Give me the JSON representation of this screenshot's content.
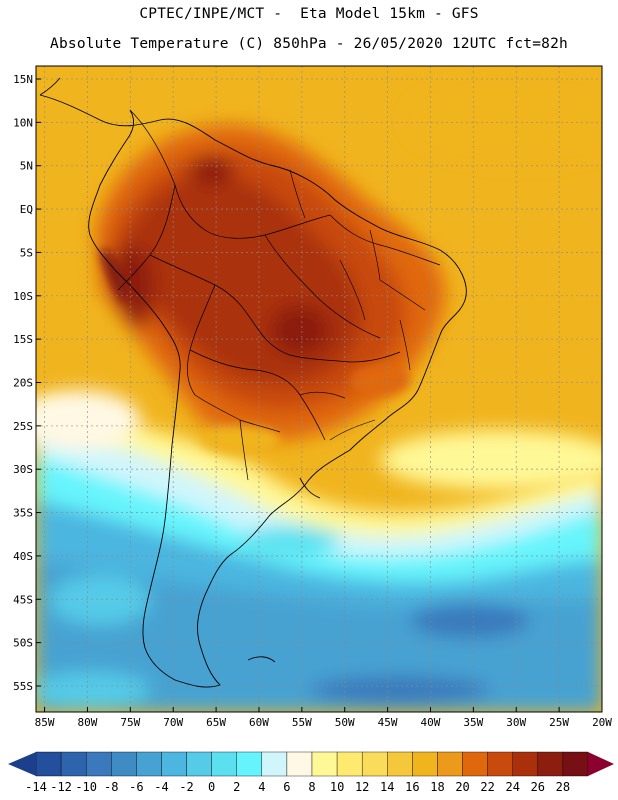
{
  "header": {
    "line1": "CPTEC/INPE/MCT -  Eta Model 15km - GFS",
    "line2": "Absolute Temperature (C) 850hPa - 26/05/2020 12UTC fct=82h"
  },
  "map": {
    "model": "Eta Model 15km",
    "variable": "Absolute Temperature (C)",
    "level": "850hPa",
    "lat_range": [
      -58,
      16.5
    ],
    "lon_range": [
      -86,
      -20
    ],
    "lat_ticks": [
      "15N",
      "10N",
      "5N",
      "EQ",
      "5S",
      "10S",
      "15S",
      "20S",
      "25S",
      "30S",
      "35S",
      "40S",
      "45S",
      "50S",
      "55S"
    ],
    "lat_values": [
      15,
      10,
      5,
      0,
      -5,
      -10,
      -15,
      -20,
      -25,
      -30,
      -35,
      -40,
      -45,
      -50,
      -55
    ],
    "lon_ticks": [
      "85W",
      "80W",
      "75W",
      "70W",
      "65W",
      "60W",
      "55W",
      "50W",
      "45W",
      "40W",
      "35W",
      "30W",
      "25W",
      "20W"
    ],
    "lon_values": [
      -85,
      -80,
      -75,
      -70,
      -65,
      -60,
      -55,
      -50,
      -45,
      -40,
      -35,
      -30,
      -25,
      -20
    ]
  },
  "colorbar": {
    "labels": [
      "-14",
      "-12",
      "-10",
      "-8",
      "-6",
      "-4",
      "-2",
      "0",
      "2",
      "4",
      "6",
      "8",
      "10",
      "12",
      "14",
      "16",
      "18",
      "20",
      "22",
      "24",
      "26",
      "28"
    ],
    "colors": [
      "#1c3f8c",
      "#244f9c",
      "#2e64ac",
      "#3b79bc",
      "#3f8cc4",
      "#46a2d2",
      "#4cb6e0",
      "#55cbe8",
      "#5ce0f0",
      "#66f4fc",
      "#d0f6fc",
      "#fff8e4",
      "#fff896",
      "#fdea6e",
      "#fadc5a",
      "#f5c83c",
      "#f0b41e",
      "#ec9a1c",
      "#e0680c",
      "#c84a0c",
      "#aa300c",
      "#8c1e10",
      "#761014",
      "#8c0030"
    ],
    "under_color": "#1c3f8c",
    "over_color": "#8c0030"
  },
  "legend_palette": {
    "ocean_cool": "#3b79bc",
    "ocean_mid": "#46a2d2",
    "cyan": "#66f4fc",
    "pale": "#fff8e4",
    "yellow": "#fadc5a",
    "orange": "#f0b41e",
    "deep_orange": "#e0680c",
    "rust": "#aa300c",
    "dark": "#761014"
  }
}
